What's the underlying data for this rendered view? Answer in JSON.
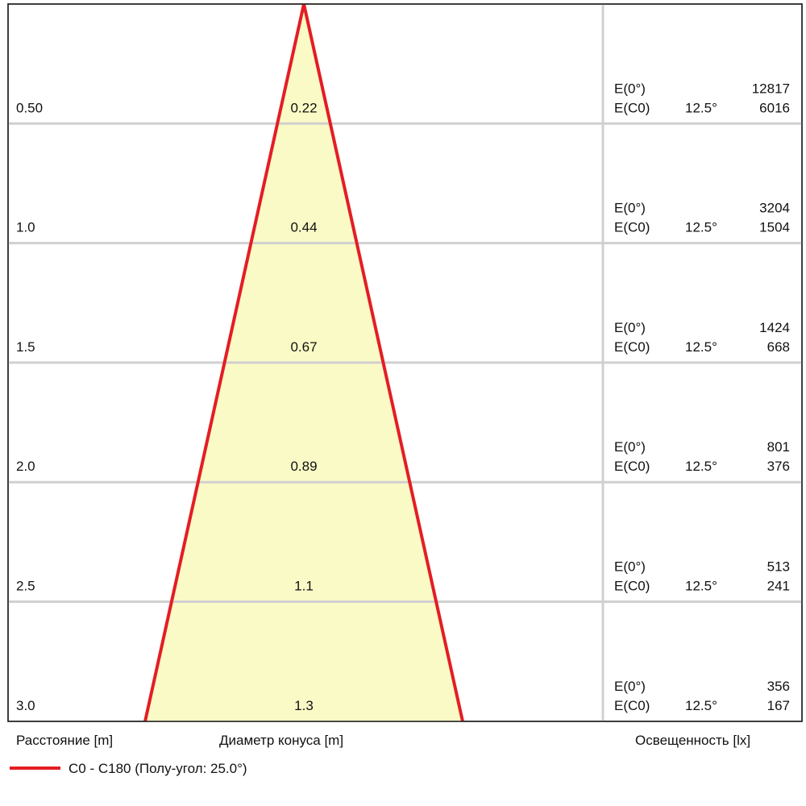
{
  "rows": [
    {
      "distance": "0.50",
      "diameter": "0.22",
      "e0_label": "E(0°)",
      "e0": "12817",
      "ec0_label": "E(C0)",
      "angle": "12.5°",
      "ec0": "6016"
    },
    {
      "distance": "1.0",
      "diameter": "0.44",
      "e0_label": "E(0°)",
      "e0": "3204",
      "ec0_label": "E(C0)",
      "angle": "12.5°",
      "ec0": "1504"
    },
    {
      "distance": "1.5",
      "diameter": "0.67",
      "e0_label": "E(0°)",
      "e0": "1424",
      "ec0_label": "E(C0)",
      "angle": "12.5°",
      "ec0": "668"
    },
    {
      "distance": "2.0",
      "diameter": "0.89",
      "e0_label": "E(0°)",
      "e0": "801",
      "ec0_label": "E(C0)",
      "angle": "12.5°",
      "ec0": "376"
    },
    {
      "distance": "2.5",
      "diameter": "1.1",
      "e0_label": "E(0°)",
      "e0": "513",
      "ec0_label": "E(C0)",
      "angle": "12.5°",
      "ec0": "241"
    },
    {
      "distance": "3.0",
      "diameter": "1.3",
      "e0_label": "E(0°)",
      "e0": "356",
      "ec0_label": "E(C0)",
      "angle": "12.5°",
      "ec0": "167"
    }
  ],
  "footer": {
    "distance_label": "Расстояние [m]",
    "diameter_label": "Диаметр конуса [m]",
    "illuminance_label": "Освещенность [lx]"
  },
  "legend": {
    "label": "C0 - C180 (Полу-угол: 25.0°)"
  }
}
